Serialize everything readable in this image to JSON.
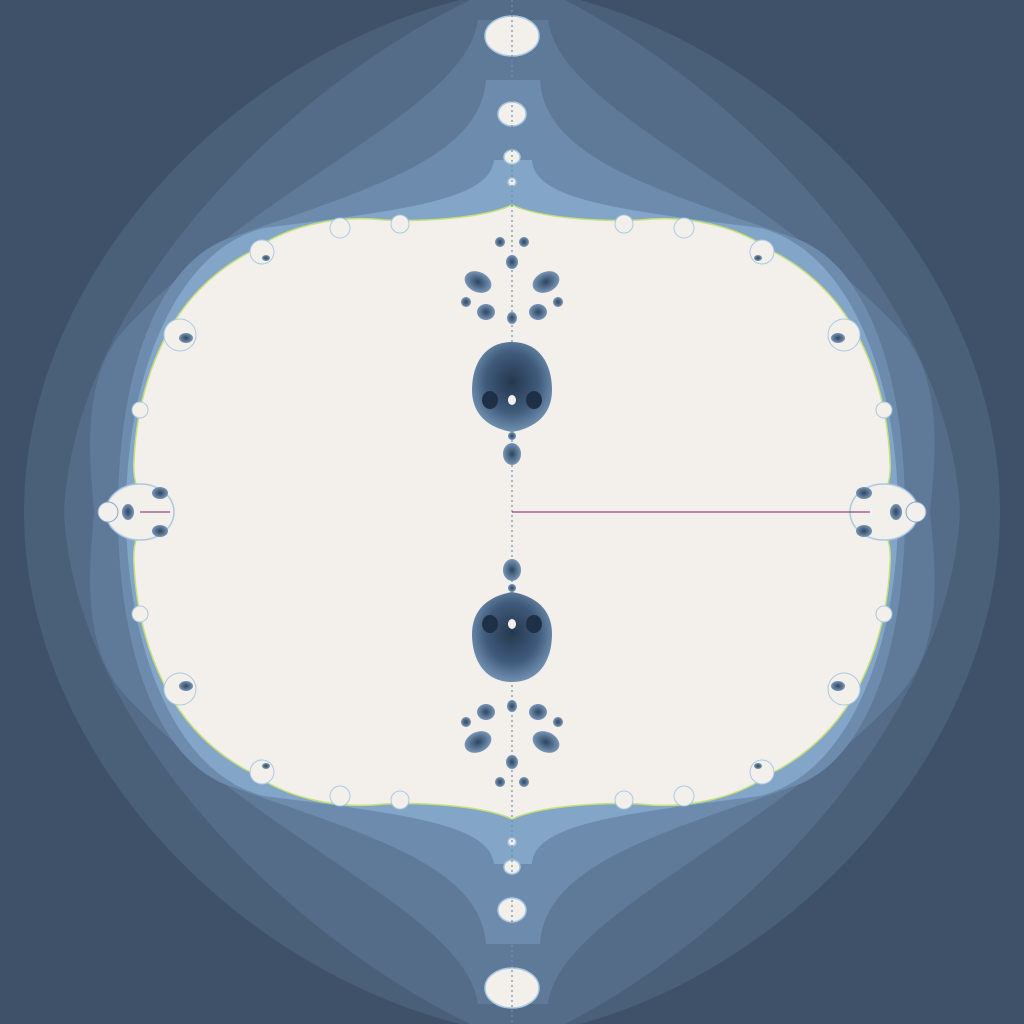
{
  "image": {
    "subject": "fractal-set-render",
    "palette": {
      "background": "#3e5168",
      "band_1": "#4a5f78",
      "band_2": "#556c88",
      "band_3": "#5f7a98",
      "band_4": "#6d8bac",
      "band_5": "#83a6c8",
      "band_6": "#a9c9e2",
      "interior": "#f3f0ec",
      "edge_highlight": "#c9e07a",
      "bulb_dark": "#2e4560",
      "bulb_mid": "#5a7a9c",
      "axis_line": "#7a2060"
    }
  }
}
